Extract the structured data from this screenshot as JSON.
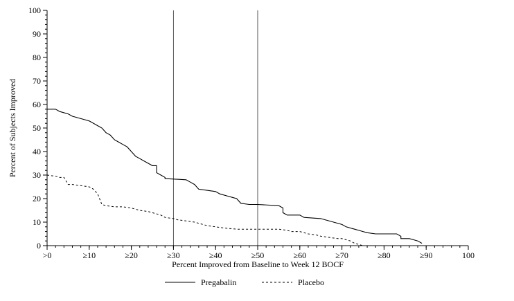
{
  "figure": {
    "background_color": "#ffffff",
    "line_color": "#000000",
    "reference_line_color": "#444444"
  },
  "chart_data": {
    "type": "line",
    "title": "",
    "xlabel": "Percent Improved from Baseline to Week 12 BOCF",
    "ylabel": "Percent of Subjects Improved",
    "xlim": [
      0,
      100
    ],
    "ylim": [
      0,
      100
    ],
    "grid": false,
    "legend_position": "bottom",
    "x_ticks": {
      "values": [
        0,
        10,
        20,
        30,
        40,
        50,
        60,
        70,
        80,
        90,
        100
      ],
      "labels": [
        ">0",
        "≥10",
        "≥20",
        "≥30",
        "≥40",
        "≥50",
        "≥60",
        "≥70",
        "≥80",
        "≥90",
        "100"
      ],
      "minor_step": 2
    },
    "y_ticks": {
      "values": [
        0,
        10,
        20,
        30,
        40,
        50,
        60,
        70,
        80,
        90,
        100
      ],
      "labels": [
        "0",
        "10",
        "20",
        "30",
        "40",
        "50",
        "60",
        "70",
        "80",
        "90",
        "100"
      ],
      "minor_step": 2
    },
    "reference_lines_x": [
      30,
      50
    ],
    "series": [
      {
        "name": "Pregabalin",
        "line_style": "solid",
        "color": "#000000",
        "points": [
          [
            0,
            58
          ],
          [
            2,
            58
          ],
          [
            3,
            57
          ],
          [
            5,
            56
          ],
          [
            6,
            55
          ],
          [
            8,
            54
          ],
          [
            10,
            53
          ],
          [
            12,
            51
          ],
          [
            13,
            50
          ],
          [
            14,
            48
          ],
          [
            15,
            47
          ],
          [
            16,
            45
          ],
          [
            17,
            44
          ],
          [
            18,
            43
          ],
          [
            19,
            42
          ],
          [
            20,
            40
          ],
          [
            21,
            38
          ],
          [
            22,
            37
          ],
          [
            23,
            36
          ],
          [
            24,
            35
          ],
          [
            25,
            34
          ],
          [
            26,
            34
          ],
          [
            26,
            31
          ],
          [
            27,
            30
          ],
          [
            28,
            29
          ],
          [
            28,
            28.5
          ],
          [
            33,
            28
          ],
          [
            34,
            27
          ],
          [
            35,
            26
          ],
          [
            36,
            24
          ],
          [
            38,
            23.5
          ],
          [
            40,
            23
          ],
          [
            41,
            22
          ],
          [
            43,
            21
          ],
          [
            44,
            20.5
          ],
          [
            45,
            20
          ],
          [
            46,
            18
          ],
          [
            48,
            17.5
          ],
          [
            50,
            17.5
          ],
          [
            55,
            17
          ],
          [
            56,
            16
          ],
          [
            56,
            14
          ],
          [
            57,
            13
          ],
          [
            60,
            13
          ],
          [
            61,
            12
          ],
          [
            65,
            11.5
          ],
          [
            66,
            11
          ],
          [
            68,
            10
          ],
          [
            70,
            9
          ],
          [
            71,
            8
          ],
          [
            73,
            7
          ],
          [
            74,
            6.5
          ],
          [
            75,
            6
          ],
          [
            76,
            5.5
          ],
          [
            78,
            5
          ],
          [
            83,
            5
          ],
          [
            84,
            4
          ],
          [
            84,
            3
          ],
          [
            86,
            3
          ],
          [
            87,
            2.5
          ],
          [
            88,
            2
          ],
          [
            89,
            1
          ]
        ]
      },
      {
        "name": "Placebo",
        "line_style": "dashed",
        "color": "#000000",
        "points": [
          [
            0,
            30
          ],
          [
            2,
            29.5
          ],
          [
            3,
            29
          ],
          [
            4,
            29
          ],
          [
            5,
            26
          ],
          [
            6,
            26
          ],
          [
            8,
            25.5
          ],
          [
            10,
            25
          ],
          [
            11,
            24
          ],
          [
            12,
            22
          ],
          [
            13,
            17.5
          ],
          [
            14,
            17
          ],
          [
            16,
            16.5
          ],
          [
            18,
            16.5
          ],
          [
            20,
            16
          ],
          [
            22,
            15
          ],
          [
            24,
            14.5
          ],
          [
            25,
            14
          ],
          [
            27,
            13
          ],
          [
            28,
            12
          ],
          [
            30,
            11.5
          ],
          [
            31,
            11
          ],
          [
            33,
            10.5
          ],
          [
            35,
            10
          ],
          [
            37,
            9
          ],
          [
            38,
            8.5
          ],
          [
            40,
            8
          ],
          [
            42,
            7.5
          ],
          [
            45,
            7
          ],
          [
            50,
            7
          ],
          [
            55,
            7
          ],
          [
            57,
            6.5
          ],
          [
            58,
            6
          ],
          [
            60,
            6
          ],
          [
            62,
            5
          ],
          [
            64,
            4.5
          ],
          [
            65,
            4
          ],
          [
            67,
            3.5
          ],
          [
            69,
            3
          ],
          [
            70,
            3
          ],
          [
            71,
            2.5
          ],
          [
            72,
            2
          ],
          [
            73,
            1
          ],
          [
            74,
            0.5
          ],
          [
            75,
            0
          ]
        ]
      }
    ]
  }
}
